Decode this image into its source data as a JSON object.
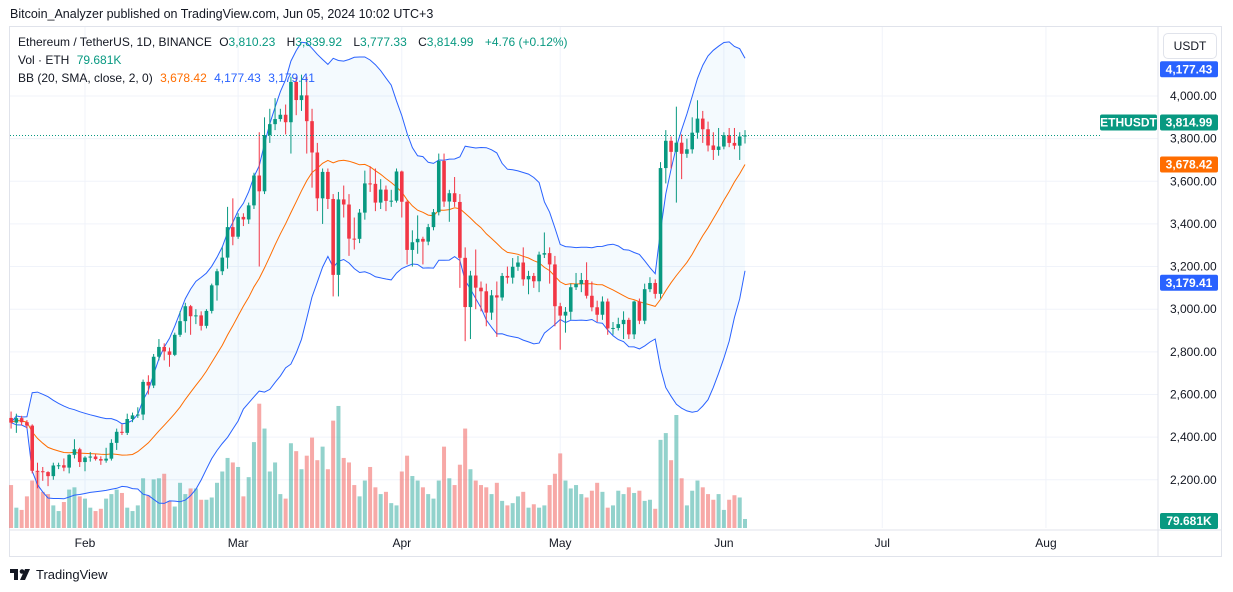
{
  "published": "Bitcoin_Analyzer published on TradingView.com, Jun 05, 2024 10:02 UTC+3",
  "legend": {
    "symbol": "Ethereum / TetherUS, 1D, BINANCE",
    "o_label": "O",
    "o": "3,810.23",
    "h_label": "H",
    "h": "3,839.92",
    "l_label": "L",
    "l": "3,777.33",
    "c_label": "C",
    "c": "3,814.99",
    "change": "+4.76 (+0.12%)",
    "vol_label": "Vol · ETH",
    "vol": "79.681K",
    "bb_label": "BB (20, SMA, close, 2, 0)",
    "bb_mid": "3,678.42",
    "bb_upper": "4,177.43",
    "bb_lower": "3,179.41"
  },
  "currency_button": "USDT",
  "price_labels": {
    "symbol_tag": "ETHUSDT",
    "last": "3,814.99",
    "bb_mid": "3,678.42",
    "bb_upper": "4,177.43",
    "bb_lower": "3,179.41",
    "volume": "79.681K"
  },
  "footer_logo": "TradingView",
  "colors": {
    "up": "#089981",
    "down": "#f23645",
    "bb_band": "#2962ff",
    "bb_basis": "#ff6d00",
    "vol_up": "#26a69a",
    "vol_down": "#ef5350"
  },
  "chart_data": {
    "type": "candlestick",
    "title": "Ethereum / TetherUS, 1D, BINANCE",
    "ylim": [
      2080,
      4320
    ],
    "y_ticks": [
      "4,000.00",
      "3,800.00",
      "3,600.00",
      "3,400.00",
      "3,200.00",
      "3,000.00",
      "2,800.00",
      "2,600.00",
      "2,400.00",
      "2,200.00"
    ],
    "y_tick_values": [
      4000,
      3800,
      3600,
      3400,
      3200,
      3000,
      2800,
      2600,
      2400,
      2200
    ],
    "x_ticks": [
      {
        "label": "Feb",
        "date": "2024-02-01"
      },
      {
        "label": "Mar",
        "date": "2024-03-01"
      },
      {
        "label": "Apr",
        "date": "2024-04-01"
      },
      {
        "label": "May",
        "date": "2024-05-01"
      },
      {
        "label": "Jun",
        "date": "2024-06-01"
      },
      {
        "label": "Jul",
        "date": "2024-07-01"
      },
      {
        "label": "Aug",
        "date": "2024-08-01"
      }
    ],
    "indicator": "Bollinger Bands (20, SMA, close, 2)",
    "columns": [
      "date",
      "open",
      "high",
      "low",
      "close",
      "volume_k"
    ],
    "candles": [
      [
        "2024-01-18",
        2490,
        2520,
        2440,
        2468,
        380
      ],
      [
        "2024-01-19",
        2468,
        2510,
        2420,
        2489,
        180
      ],
      [
        "2024-01-20",
        2489,
        2500,
        2455,
        2470,
        160
      ],
      [
        "2024-01-21",
        2470,
        2480,
        2440,
        2454,
        280
      ],
      [
        "2024-01-22",
        2454,
        2460,
        2230,
        2242,
        420
      ],
      [
        "2024-01-23",
        2242,
        2280,
        2160,
        2240,
        500
      ],
      [
        "2024-01-24",
        2240,
        2260,
        2195,
        2236,
        320
      ],
      [
        "2024-01-25",
        2236,
        2240,
        2170,
        2217,
        300
      ],
      [
        "2024-01-26",
        2217,
        2280,
        2200,
        2267,
        200
      ],
      [
        "2024-01-27",
        2267,
        2280,
        2250,
        2268,
        150
      ],
      [
        "2024-01-28",
        2268,
        2300,
        2240,
        2257,
        230
      ],
      [
        "2024-01-29",
        2257,
        2320,
        2230,
        2317,
        340
      ],
      [
        "2024-01-30",
        2317,
        2390,
        2300,
        2343,
        360
      ],
      [
        "2024-01-31",
        2343,
        2350,
        2260,
        2283,
        280
      ],
      [
        "2024-02-01",
        2283,
        2310,
        2240,
        2304,
        260
      ],
      [
        "2024-02-02",
        2304,
        2330,
        2285,
        2309,
        180
      ],
      [
        "2024-02-03",
        2309,
        2320,
        2290,
        2297,
        150
      ],
      [
        "2024-02-04",
        2297,
        2310,
        2270,
        2290,
        170
      ],
      [
        "2024-02-05",
        2290,
        2350,
        2280,
        2299,
        260
      ],
      [
        "2024-02-06",
        2299,
        2390,
        2290,
        2373,
        300
      ],
      [
        "2024-02-07",
        2373,
        2440,
        2340,
        2425,
        340
      ],
      [
        "2024-02-08",
        2425,
        2460,
        2410,
        2420,
        310
      ],
      [
        "2024-02-09",
        2420,
        2510,
        2410,
        2485,
        180
      ],
      [
        "2024-02-10",
        2485,
        2515,
        2470,
        2502,
        150
      ],
      [
        "2024-02-11",
        2502,
        2540,
        2490,
        2506,
        200
      ],
      [
        "2024-02-12",
        2506,
        2670,
        2480,
        2659,
        440
      ],
      [
        "2024-02-13",
        2659,
        2690,
        2600,
        2642,
        290
      ],
      [
        "2024-02-14",
        2642,
        2790,
        2630,
        2777,
        430
      ],
      [
        "2024-02-15",
        2777,
        2860,
        2760,
        2823,
        440
      ],
      [
        "2024-02-16",
        2823,
        2840,
        2760,
        2802,
        480
      ],
      [
        "2024-02-17",
        2802,
        2820,
        2730,
        2786,
        240
      ],
      [
        "2024-02-18",
        2786,
        2890,
        2780,
        2880,
        190
      ],
      [
        "2024-02-19",
        2880,
        2990,
        2870,
        2944,
        400
      ],
      [
        "2024-02-20",
        2944,
        3030,
        2890,
        3014,
        300
      ],
      [
        "2024-02-21",
        3014,
        3020,
        2880,
        2967,
        350
      ],
      [
        "2024-02-22",
        2967,
        3000,
        2930,
        2971,
        350
      ],
      [
        "2024-02-23",
        2971,
        2990,
        2900,
        2922,
        250
      ],
      [
        "2024-02-24",
        2922,
        3000,
        2910,
        2992,
        250
      ],
      [
        "2024-02-25",
        2992,
        3120,
        2980,
        3112,
        270
      ],
      [
        "2024-02-26",
        3112,
        3190,
        3040,
        3178,
        400
      ],
      [
        "2024-02-27",
        3178,
        3290,
        3160,
        3242,
        500
      ],
      [
        "2024-02-28",
        3242,
        3480,
        3190,
        3385,
        620
      ],
      [
        "2024-02-29",
        3385,
        3520,
        3300,
        3340,
        580
      ],
      [
        "2024-03-01",
        3340,
        3450,
        3330,
        3433,
        540
      ],
      [
        "2024-03-02",
        3433,
        3450,
        3390,
        3421,
        280
      ],
      [
        "2024-03-03",
        3421,
        3500,
        3400,
        3487,
        450
      ],
      [
        "2024-03-04",
        3487,
        3640,
        3470,
        3627,
        760
      ],
      [
        "2024-03-05",
        3627,
        3830,
        3200,
        3553,
        1100
      ],
      [
        "2024-03-06",
        3553,
        3900,
        3540,
        3817,
        880
      ],
      [
        "2024-03-07",
        3817,
        3940,
        3780,
        3868,
        500
      ],
      [
        "2024-03-08",
        3868,
        3990,
        3840,
        3892,
        580
      ],
      [
        "2024-03-09",
        3892,
        3940,
        3880,
        3912,
        300
      ],
      [
        "2024-03-10",
        3912,
        3960,
        3820,
        3877,
        260
      ],
      [
        "2024-03-11",
        3877,
        4090,
        3730,
        4066,
        750
      ],
      [
        "2024-03-12",
        4066,
        4090,
        3910,
        3981,
        680
      ],
      [
        "2024-03-13",
        3981,
        4100,
        3930,
        4003,
        520
      ],
      [
        "2024-03-14",
        4003,
        4090,
        3730,
        3882,
        640
      ],
      [
        "2024-03-15",
        3882,
        3940,
        3570,
        3735,
        800
      ],
      [
        "2024-03-16",
        3735,
        3780,
        3460,
        3520,
        600
      ],
      [
        "2024-03-17",
        3520,
        3660,
        3400,
        3644,
        720
      ],
      [
        "2024-03-18",
        3644,
        3660,
        3470,
        3517,
        520
      ],
      [
        "2024-03-19",
        3517,
        3540,
        3060,
        3161,
        950
      ],
      [
        "2024-03-20",
        3161,
        3550,
        3060,
        3515,
        1080
      ],
      [
        "2024-03-21",
        3515,
        3580,
        3430,
        3491,
        620
      ],
      [
        "2024-03-22",
        3491,
        3540,
        3250,
        3331,
        580
      ],
      [
        "2024-03-23",
        3331,
        3430,
        3280,
        3330,
        380
      ],
      [
        "2024-03-24",
        3330,
        3470,
        3310,
        3453,
        280
      ],
      [
        "2024-03-25",
        3453,
        3650,
        3420,
        3590,
        420
      ],
      [
        "2024-03-26",
        3590,
        3670,
        3550,
        3588,
        540
      ],
      [
        "2024-03-27",
        3588,
        3660,
        3460,
        3500,
        360
      ],
      [
        "2024-03-28",
        3500,
        3610,
        3470,
        3561,
        300
      ],
      [
        "2024-03-29",
        3561,
        3580,
        3460,
        3508,
        320
      ],
      [
        "2024-03-30",
        3508,
        3560,
        3480,
        3509,
        220
      ],
      [
        "2024-03-31",
        3509,
        3660,
        3500,
        3646,
        200
      ],
      [
        "2024-04-01",
        3646,
        3650,
        3430,
        3504,
        500
      ],
      [
        "2024-04-02",
        3504,
        3510,
        3210,
        3278,
        640
      ],
      [
        "2024-04-03",
        3278,
        3370,
        3200,
        3314,
        460
      ],
      [
        "2024-04-04",
        3314,
        3440,
        3260,
        3330,
        420
      ],
      [
        "2024-04-05",
        3330,
        3340,
        3210,
        3317,
        360
      ],
      [
        "2024-04-06",
        3317,
        3400,
        3300,
        3385,
        300
      ],
      [
        "2024-04-07",
        3385,
        3470,
        3370,
        3455,
        260
      ],
      [
        "2024-04-08",
        3455,
        3730,
        3440,
        3695,
        420
      ],
      [
        "2024-04-09",
        3695,
        3730,
        3480,
        3505,
        720
      ],
      [
        "2024-04-10",
        3505,
        3560,
        3410,
        3544,
        440
      ],
      [
        "2024-04-11",
        3544,
        3620,
        3480,
        3503,
        380
      ],
      [
        "2024-04-12",
        3503,
        3540,
        3100,
        3241,
        560
      ],
      [
        "2024-04-13",
        3241,
        3290,
        2850,
        3010,
        880
      ],
      [
        "2024-04-14",
        3010,
        3180,
        2860,
        3158,
        520
      ],
      [
        "2024-04-15",
        3158,
        3280,
        3000,
        3101,
        420
      ],
      [
        "2024-04-16",
        3101,
        3130,
        2990,
        3084,
        380
      ],
      [
        "2024-04-17",
        3084,
        3120,
        2920,
        2984,
        360
      ],
      [
        "2024-04-18",
        2984,
        3090,
        2950,
        3065,
        300
      ],
      [
        "2024-04-19",
        3065,
        3130,
        2870,
        3055,
        400
      ],
      [
        "2024-04-20",
        3055,
        3170,
        3040,
        3156,
        240
      ],
      [
        "2024-04-21",
        3156,
        3200,
        3120,
        3148,
        200
      ],
      [
        "2024-04-22",
        3148,
        3240,
        3120,
        3199,
        220
      ],
      [
        "2024-04-23",
        3199,
        3250,
        3180,
        3219,
        280
      ],
      [
        "2024-04-24",
        3219,
        3290,
        3110,
        3140,
        320
      ],
      [
        "2024-04-25",
        3140,
        3180,
        3070,
        3156,
        180
      ],
      [
        "2024-04-26",
        3156,
        3170,
        3100,
        3131,
        210
      ],
      [
        "2024-04-27",
        3131,
        3270,
        3080,
        3256,
        180
      ],
      [
        "2024-04-28",
        3256,
        3360,
        3240,
        3263,
        200
      ],
      [
        "2024-04-29",
        3263,
        3290,
        3120,
        3210,
        380
      ],
      [
        "2024-04-30",
        3210,
        3250,
        2920,
        3014,
        480
      ],
      [
        "2024-05-01",
        3014,
        3030,
        2810,
        2970,
        660
      ],
      [
        "2024-05-02",
        2970,
        3010,
        2890,
        2988,
        420
      ],
      [
        "2024-05-03",
        2988,
        3120,
        2950,
        3103,
        350
      ],
      [
        "2024-05-04",
        3103,
        3170,
        3090,
        3118,
        380
      ],
      [
        "2024-05-05",
        3118,
        3170,
        3080,
        3137,
        300
      ],
      [
        "2024-05-06",
        3137,
        3220,
        3050,
        3063,
        270
      ],
      [
        "2024-05-07",
        3063,
        3130,
        2990,
        3009,
        330
      ],
      [
        "2024-05-08",
        3009,
        3040,
        2940,
        2974,
        400
      ],
      [
        "2024-05-09",
        2974,
        3060,
        2950,
        3036,
        320
      ],
      [
        "2024-05-10",
        3036,
        3050,
        2880,
        2910,
        180
      ],
      [
        "2024-05-11",
        2910,
        2940,
        2880,
        2912,
        200
      ],
      [
        "2024-05-12",
        2912,
        2960,
        2900,
        2930,
        330
      ],
      [
        "2024-05-13",
        2930,
        2990,
        2860,
        2950,
        300
      ],
      [
        "2024-05-14",
        2950,
        2960,
        2860,
        2882,
        360
      ],
      [
        "2024-05-15",
        2882,
        3040,
        2860,
        3036,
        310
      ],
      [
        "2024-05-16",
        3036,
        3050,
        2930,
        2946,
        330
      ],
      [
        "2024-05-17",
        2946,
        3120,
        2930,
        3094,
        240
      ],
      [
        "2024-05-18",
        3094,
        3150,
        3080,
        3123,
        250
      ],
      [
        "2024-05-19",
        3123,
        3140,
        3050,
        3072,
        170
      ],
      [
        "2024-05-20",
        3072,
        3690,
        3050,
        3662,
        780
      ],
      [
        "2024-05-21",
        3662,
        3840,
        3590,
        3790,
        840
      ],
      [
        "2024-05-22",
        3790,
        3810,
        3660,
        3738,
        600
      ],
      [
        "2024-05-23",
        3738,
        3950,
        3500,
        3781,
        1000
      ],
      [
        "2024-05-24",
        3781,
        3820,
        3610,
        3729,
        440
      ],
      [
        "2024-05-25",
        3729,
        3800,
        3710,
        3750,
        200
      ],
      [
        "2024-05-26",
        3750,
        3900,
        3730,
        3828,
        330
      ],
      [
        "2024-05-27",
        3828,
        3980,
        3800,
        3894,
        420
      ],
      [
        "2024-05-28",
        3894,
        3930,
        3780,
        3844,
        360
      ],
      [
        "2024-05-29",
        3844,
        3880,
        3740,
        3768,
        300
      ],
      [
        "2024-05-30",
        3768,
        3830,
        3700,
        3747,
        250
      ],
      [
        "2024-05-31",
        3747,
        3850,
        3720,
        3763,
        300
      ],
      [
        "2024-06-01",
        3763,
        3830,
        3750,
        3816,
        160
      ],
      [
        "2024-06-02",
        3816,
        3850,
        3760,
        3780,
        250
      ],
      [
        "2024-06-03",
        3780,
        3850,
        3750,
        3767,
        290
      ],
      [
        "2024-06-04",
        3767,
        3830,
        3700,
        3810.23,
        270
      ],
      [
        "2024-06-05",
        3810.23,
        3839.92,
        3777.33,
        3814.99,
        79.681
      ]
    ]
  }
}
